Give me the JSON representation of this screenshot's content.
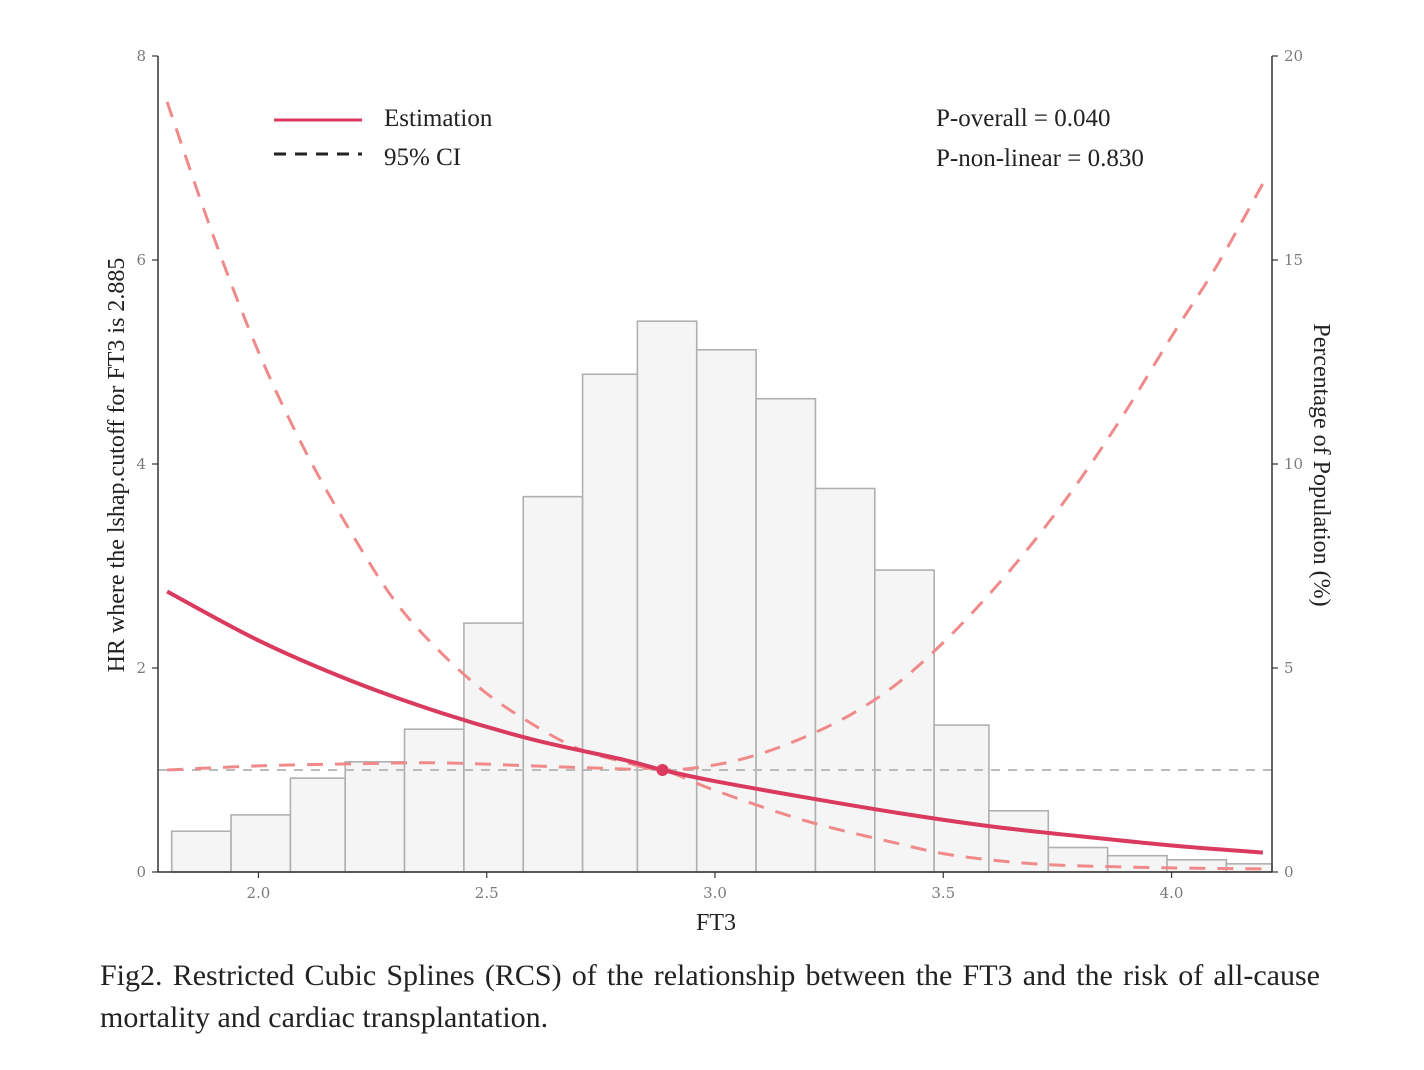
{
  "chart_data": {
    "type": "rcs-with-histogram",
    "xlabel": "FT3",
    "ylabel_left": "HR where the lshap.cutoff for FT3 is 2.885",
    "ylabel_right": "Percentage of Population (%)",
    "xlim": [
      1.78,
      4.22
    ],
    "ylim_left": [
      0,
      8
    ],
    "ylim_right": [
      0,
      20
    ],
    "x_ticks": [
      "2.0",
      "2.5",
      "3.0",
      "3.5",
      "4.0"
    ],
    "y_left_ticks": [
      "0",
      "2",
      "4",
      "6",
      "8"
    ],
    "y_right_ticks": [
      "0",
      "5",
      "10",
      "15",
      "20"
    ],
    "reference_line_hr": 1,
    "cutoff": {
      "x": 2.885,
      "hr": 1
    },
    "histogram": {
      "bin_edges": [
        1.81,
        1.94,
        2.07,
        2.19,
        2.32,
        2.45,
        2.58,
        2.71,
        2.83,
        2.96,
        3.09,
        3.22,
        3.35,
        3.48,
        3.6,
        3.73,
        3.86,
        3.99,
        4.12,
        4.22
      ],
      "percent": [
        1.0,
        1.4,
        2.3,
        2.7,
        3.5,
        6.1,
        9.2,
        12.2,
        13.5,
        12.8,
        11.6,
        9.4,
        7.4,
        3.6,
        1.5,
        0.6,
        0.4,
        0.3,
        0.2
      ]
    },
    "series": [
      {
        "name": "Estimation",
        "style": "solid",
        "x": [
          1.8,
          2.0,
          2.2,
          2.4,
          2.6,
          2.8,
          2.885,
          3.0,
          3.2,
          3.4,
          3.6,
          3.8,
          4.0,
          4.2
        ],
        "hr": [
          2.75,
          2.27,
          1.88,
          1.56,
          1.3,
          1.1,
          1.0,
          0.89,
          0.73,
          0.58,
          0.45,
          0.35,
          0.26,
          0.19
        ]
      },
      {
        "name": "95% CI upper",
        "style": "dashed",
        "x": [
          1.8,
          1.9,
          2.0,
          2.1,
          2.2,
          2.3,
          2.4,
          2.5,
          2.6,
          2.7,
          2.8,
          2.885,
          3.0,
          3.1,
          3.2,
          3.3,
          3.4,
          3.5,
          3.6,
          3.7,
          3.8,
          3.9,
          4.0,
          4.1,
          4.2
        ],
        "hr": [
          7.55,
          6.25,
          5.1,
          4.15,
          3.35,
          2.65,
          2.15,
          1.75,
          1.45,
          1.21,
          1.08,
          1.0,
          1.05,
          1.16,
          1.33,
          1.55,
          1.85,
          2.25,
          2.72,
          3.25,
          3.85,
          4.52,
          5.25,
          5.95,
          6.75
        ]
      },
      {
        "name": "95% CI lower",
        "style": "dashed",
        "x": [
          1.8,
          2.0,
          2.2,
          2.4,
          2.6,
          2.8,
          2.885,
          3.0,
          3.2,
          3.4,
          3.5,
          3.6,
          3.7,
          3.8,
          4.0,
          4.2
        ],
        "hr": [
          1.0,
          1.04,
          1.06,
          1.07,
          1.04,
          1.01,
          1.0,
          0.8,
          0.5,
          0.28,
          0.18,
          0.12,
          0.08,
          0.06,
          0.04,
          0.03
        ]
      }
    ],
    "legend": [
      {
        "label": "Estimation",
        "style": "solid"
      },
      {
        "label": "95% CI",
        "style": "dashed"
      }
    ],
    "annotations": [
      "P-overall = 0.040",
      "P-non-linear = 0.830"
    ],
    "colors": {
      "line": "#d93a5e",
      "ci": "#f08a8a",
      "bar_fill": "#f5f5f5",
      "bar_stroke": "#b0b0b0",
      "ref": "#bbbbbb",
      "axis": "#333333"
    }
  },
  "caption": "Fig2. Restricted Cubic Splines (RCS) of the relationship between the FT3 and the risk of all-cause mortality and cardiac transplantation."
}
